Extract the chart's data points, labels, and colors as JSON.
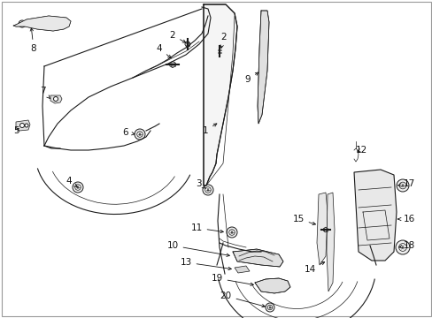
{
  "bg": "#ffffff",
  "lc": "#1a1a1a",
  "tc": "#111111",
  "fs": 7.5,
  "dpi": 100,
  "figw": 4.89,
  "figh": 3.6
}
